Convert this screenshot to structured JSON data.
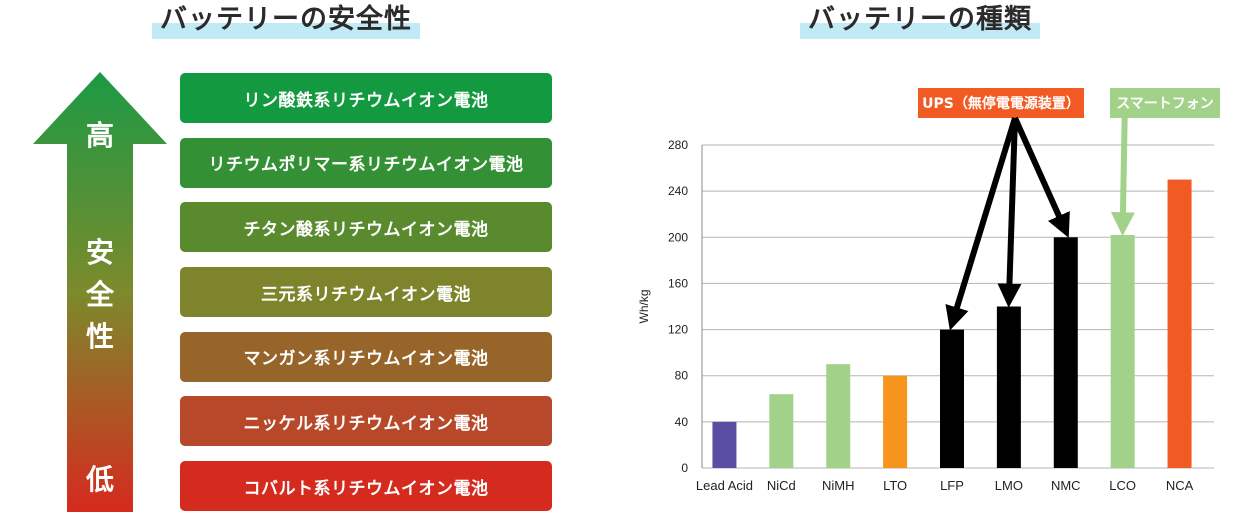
{
  "left_panel": {
    "title": "バッテリーの安全性",
    "arrow_high": "高",
    "arrow_mid": "安全性",
    "arrow_low": "低",
    "arrow_colors": [
      "#1b9a44",
      "#7c8a2c",
      "#d62a1e"
    ],
    "items": [
      {
        "label": "リン酸鉄系リチウムイオン電池",
        "color": "#139a40"
      },
      {
        "label": "リチウムポリマー系リチウムイオン電池",
        "color": "#349035"
      },
      {
        "label": "チタン酸系リチウムイオン電池",
        "color": "#5a8a2e"
      },
      {
        "label": "三元系リチウムイオン電池",
        "color": "#7d842b"
      },
      {
        "label": "マンガン系リチウムイオン電池",
        "color": "#97652a"
      },
      {
        "label": "ニッケル系リチウムイオン電池",
        "color": "#b7492a"
      },
      {
        "label": "コバルト系リチウムイオン電池",
        "color": "#d52a1e"
      }
    ]
  },
  "right_panel": {
    "title": "バッテリーの種類",
    "callouts": {
      "ups": "UPS（無停電電源装置）",
      "phone": "スマートフォン"
    }
  },
  "chart_data": {
    "type": "bar",
    "title": "バッテリーの種類",
    "ylabel": "Wh/kg",
    "xlabel": "",
    "ylim": [
      0,
      280
    ],
    "yticks": [
      0,
      40,
      80,
      120,
      160,
      200,
      240,
      280
    ],
    "grid": true,
    "categories": [
      "Lead Acid",
      "NiCd",
      "NiMH",
      "LTO",
      "LFP",
      "LMO",
      "NMC",
      "LCO",
      "NCA"
    ],
    "values": [
      40,
      64,
      90,
      80,
      120,
      140,
      200,
      202,
      250
    ],
    "colors": [
      "#5a4ea3",
      "#a2d28a",
      "#a2d28a",
      "#f7941d",
      "#000000",
      "#000000",
      "#000000",
      "#a2d28a",
      "#f15a22"
    ],
    "annotations": [
      {
        "text": "UPS（無停電電源装置）",
        "targets": [
          "LFP",
          "LMO",
          "NMC"
        ]
      },
      {
        "text": "スマートフォン",
        "targets": [
          "LCO"
        ]
      }
    ]
  }
}
